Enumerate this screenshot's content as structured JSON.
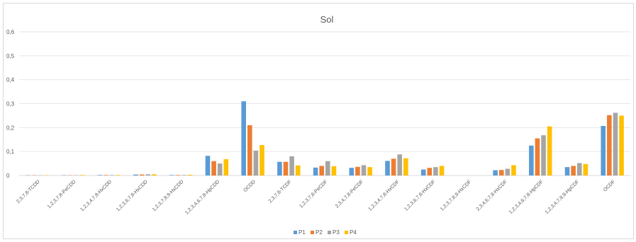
{
  "chart_data": {
    "type": "bar",
    "title": "Sol",
    "xlabel": "",
    "ylabel": "",
    "ylim": [
      0,
      0.6
    ],
    "yticks": [
      "0",
      "0,1",
      "0,2",
      "0,3",
      "0,4",
      "0,5",
      "0,6"
    ],
    "ytick_values": [
      0,
      0.1,
      0.2,
      0.3,
      0.4,
      0.5,
      0.6
    ],
    "grid": true,
    "legend_position": "bottom",
    "categories": [
      "2,3,7,8-TCDD",
      "1,2,3,7,8-PeCDD",
      "1,2,3,4,7,8-HxCDD",
      "1,2,3,6,7,8-HxCDD",
      "1,2,3,7,8,9-HxCDD",
      "1,2,3,4,6,7,8-HpCDD",
      "OCDD",
      "2,3,7,8-TCDF",
      "1,2,3,7,8-PeCDF",
      "2,3,4,7,8-PeCDF",
      "1,2,3,4,7,8-HxCDF",
      "1,2,3,6,7,8-HxCDF",
      "1,2,3,7,8,9-HxCDF",
      "2,3,4,6,7,8-HxCDF",
      "1,2,3,4,6,7,8-HpCDF",
      "1,2,3,4,7,8,9-HpCDF",
      "OCDF"
    ],
    "series": [
      {
        "name": "P1",
        "color": "#5B9BD5",
        "values": [
          0.001,
          0.001,
          0.002,
          0.004,
          0.002,
          0.082,
          0.31,
          0.057,
          0.033,
          0.032,
          0.061,
          0.025,
          0.0,
          0.022,
          0.125,
          0.035,
          0.207
        ]
      },
      {
        "name": "P2",
        "color": "#ED7D31",
        "values": [
          0.001,
          0.001,
          0.002,
          0.004,
          0.002,
          0.06,
          0.21,
          0.057,
          0.04,
          0.036,
          0.07,
          0.032,
          0.0,
          0.023,
          0.155,
          0.04,
          0.252
        ]
      },
      {
        "name": "P3",
        "color": "#A5A5A5",
        "values": [
          0.001,
          0.001,
          0.002,
          0.005,
          0.002,
          0.05,
          0.104,
          0.08,
          0.06,
          0.043,
          0.088,
          0.035,
          0.0,
          0.028,
          0.168,
          0.052,
          0.262
        ]
      },
      {
        "name": "P4",
        "color": "#FFC000",
        "values": [
          0.001,
          0.002,
          0.002,
          0.005,
          0.003,
          0.068,
          0.127,
          0.042,
          0.039,
          0.035,
          0.072,
          0.04,
          0.0,
          0.043,
          0.205,
          0.048,
          0.25
        ]
      }
    ]
  }
}
